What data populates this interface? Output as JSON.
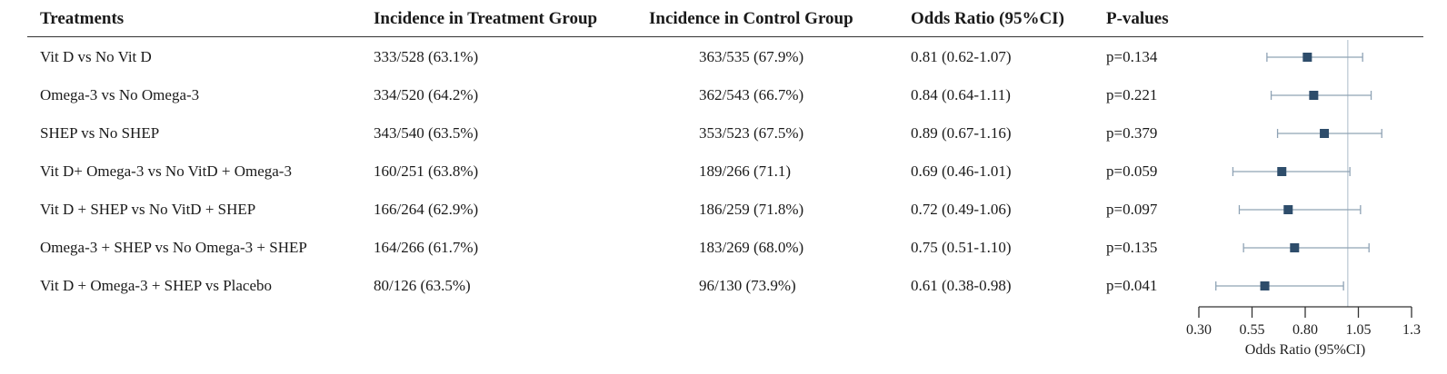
{
  "headers": {
    "treatments": "Treatments",
    "treatment_group": "Incidence in Treatment Group",
    "control_group": "Incidence in Control Group",
    "odds_ratio": "Odds Ratio (95%CI)",
    "p_values": "P-values"
  },
  "rows": [
    {
      "treatment": "Vit D vs No Vit D",
      "tg": "333/528 (63.1%)",
      "cg": "363/535 (67.9%)",
      "or_text": "0.81 (0.62-1.07)",
      "p": "p=0.134"
    },
    {
      "treatment": "Omega-3 vs No Omega-3",
      "tg": "334/520 (64.2%)",
      "cg": "362/543 (66.7%)",
      "or_text": "0.84 (0.64-1.11)",
      "p": "p=0.221"
    },
    {
      "treatment": "SHEP vs No SHEP",
      "tg": "343/540 (63.5%)",
      "cg": "353/523 (67.5%)",
      "or_text": "0.89 (0.67-1.16)",
      "p": "p=0.379"
    },
    {
      "treatment": "Vit D+ Omega-3 vs No VitD + Omega-3",
      "tg": "160/251 (63.8%)",
      "cg": "189/266 (71.1)",
      "or_text": "0.69 (0.46-1.01)",
      "p": "p=0.059"
    },
    {
      "treatment": "Vit D + SHEP vs No VitD + SHEP",
      "tg": "166/264 (62.9%)",
      "cg": "186/259 (71.8%)",
      "or_text": "0.72 (0.49-1.06)",
      "p": "p=0.097"
    },
    {
      "treatment": "Omega-3 + SHEP vs No Omega-3 + SHEP",
      "tg": "164/266 (61.7%)",
      "cg": "183/269 (68.0%)",
      "or_text": "0.75 (0.51-1.10)",
      "p": "p=0.135"
    },
    {
      "treatment": "Vit D + Omega-3 + SHEP vs Placebo",
      "tg": "80/126 (63.5%)",
      "cg": "96/130 (73.9%)",
      "or_text": "0.61 (0.38-0.98)",
      "p": "p=0.041"
    }
  ],
  "chart_data": {
    "type": "scatter",
    "title": "",
    "xlabel": "Odds Ratio (95%CI)",
    "ylabel": "",
    "x_ticks": [
      "0.30",
      "0.55",
      "0.80",
      "1.05",
      "1.3"
    ],
    "xlim": [
      0.3,
      1.3
    ],
    "reference_line": 1.0,
    "marker_color": "#2e4d6b",
    "ci_color": "#8fa3b5",
    "ref_line_color": "#c8d2da",
    "points": [
      {
        "label": "Vit D vs No Vit D",
        "or": 0.81,
        "lower": 0.62,
        "upper": 1.07
      },
      {
        "label": "Omega-3 vs No Omega-3",
        "or": 0.84,
        "lower": 0.64,
        "upper": 1.11
      },
      {
        "label": "SHEP vs No SHEP",
        "or": 0.89,
        "lower": 0.67,
        "upper": 1.16
      },
      {
        "label": "Vit D+ Omega-3 vs No VitD + Omega-3",
        "or": 0.69,
        "lower": 0.46,
        "upper": 1.01
      },
      {
        "label": "Vit D + SHEP vs No VitD + SHEP",
        "or": 0.72,
        "lower": 0.49,
        "upper": 1.06
      },
      {
        "label": "Omega-3 + SHEP vs No Omega-3 + SHEP",
        "or": 0.75,
        "lower": 0.51,
        "upper": 1.1
      },
      {
        "label": "Vit D + Omega-3 + SHEP vs Placebo",
        "or": 0.61,
        "lower": 0.38,
        "upper": 0.98
      }
    ]
  }
}
